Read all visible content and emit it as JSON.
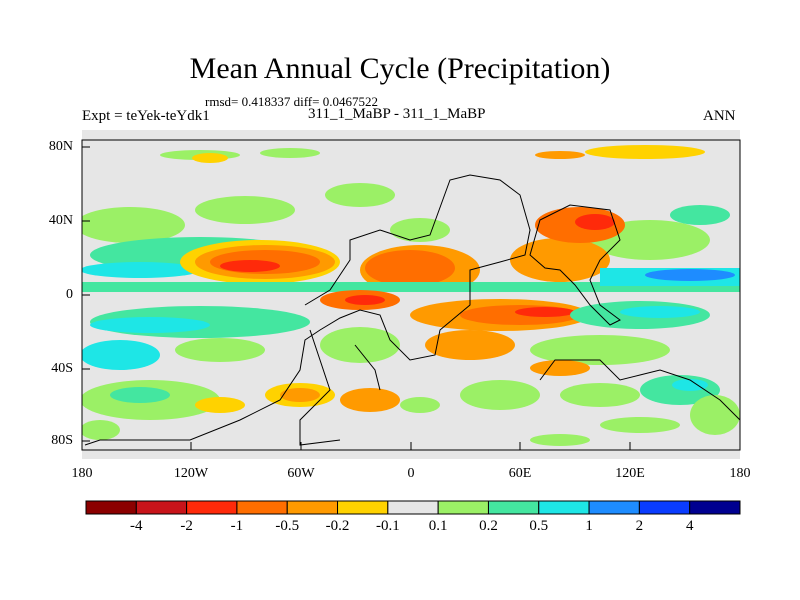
{
  "title": "Mean Annual Cycle (Precipitation)",
  "stats": "rmsd= 0.418337 diff= 0.0467522",
  "expt": "Expt = teYek-teYdk1",
  "case": "311_1_MaBP - 311_1_MaBP",
  "season": "ANN",
  "lat_labels": [
    "80N",
    "40N",
    "0",
    "40S",
    "80S"
  ],
  "lon_labels": [
    "180",
    "120W",
    "60W",
    "0",
    "60E",
    "120E",
    "180"
  ],
  "colorbar": {
    "labels": [
      "-4",
      "-2",
      "-1",
      "-0.5",
      "-0.2",
      "-0.1",
      "0.1",
      "0.2",
      "0.5",
      "1",
      "2",
      "4"
    ],
    "colors": [
      "#8b0000",
      "#c8141a",
      "#ff2a0a",
      "#ff6e00",
      "#ff9a00",
      "#ffd200",
      "#e6e6e6",
      "#9bf066",
      "#44e6a0",
      "#1ee6e6",
      "#1e8cff",
      "#0a3cff",
      "#000090"
    ]
  }
}
